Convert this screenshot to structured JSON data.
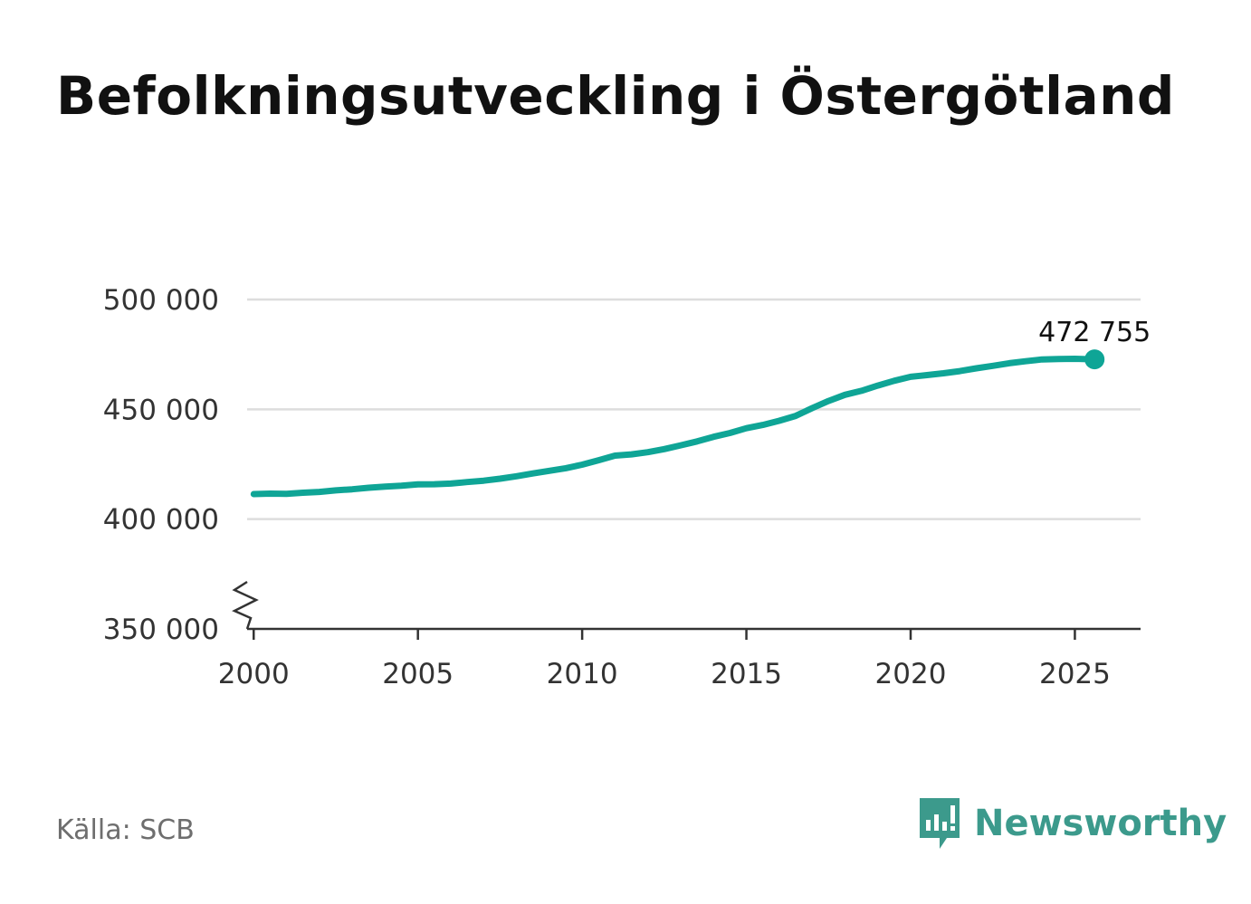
{
  "colors": {
    "line": "#0fa596",
    "grid": "#dddddd",
    "axis": "#333333",
    "brand": "#3c9a8c"
  },
  "footer": {
    "source": "Källa: SCB",
    "brand": "Newsworthy"
  },
  "chart_data": {
    "type": "line",
    "title": "Befolkningsutveckling i Östergötland",
    "xlabel": "",
    "ylabel": "",
    "xlim": [
      1999.8,
      2027
    ],
    "ylim": [
      350000,
      500000
    ],
    "grid": true,
    "axis_break": true,
    "x_ticks": [
      2000,
      2005,
      2010,
      2015,
      2020,
      2025
    ],
    "x_tick_labels": [
      "2000",
      "2005",
      "2010",
      "2015",
      "2020",
      "2025"
    ],
    "y_ticks": [
      350000,
      400000,
      450000,
      500000
    ],
    "y_tick_labels": [
      "350 000",
      "400 000",
      "450 000",
      "500 000"
    ],
    "end_label": "472 755",
    "series": [
      {
        "name": "Östergötland",
        "x": [
          2000.0,
          2000.5,
          2001.0,
          2001.5,
          2002.0,
          2002.5,
          2003.0,
          2003.5,
          2004.0,
          2004.5,
          2005.0,
          2005.5,
          2006.0,
          2006.5,
          2007.0,
          2007.5,
          2008.0,
          2008.5,
          2009.0,
          2009.5,
          2010.0,
          2010.5,
          2011.0,
          2011.5,
          2012.0,
          2012.5,
          2013.0,
          2013.5,
          2014.0,
          2014.5,
          2015.0,
          2015.5,
          2016.0,
          2016.5,
          2017.0,
          2017.5,
          2018.0,
          2018.5,
          2019.0,
          2019.5,
          2020.0,
          2020.5,
          2021.0,
          2021.5,
          2022.0,
          2022.5,
          2023.0,
          2023.5,
          2024.0,
          2024.5,
          2025.0,
          2025.6
        ],
        "values": [
          411400,
          411600,
          411500,
          412000,
          412400,
          413100,
          413600,
          414300,
          414800,
          415200,
          415800,
          415900,
          416200,
          416900,
          417500,
          418400,
          419500,
          420800,
          422000,
          423200,
          424800,
          426800,
          428900,
          429500,
          430500,
          431900,
          433600,
          435400,
          437500,
          439200,
          441400,
          442900,
          444800,
          447000,
          450500,
          453800,
          456600,
          458400,
          460800,
          463000,
          464800,
          465600,
          466400,
          467400,
          468700,
          469800,
          471000,
          471900,
          472700,
          472900,
          473000,
          472755
        ]
      }
    ]
  }
}
